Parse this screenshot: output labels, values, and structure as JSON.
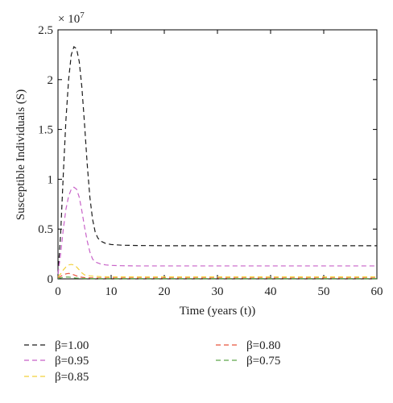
{
  "chart_data": {
    "type": "line",
    "xlabel": "Time (years (t))",
    "ylabel": "Susceptible Individuals (S)",
    "y_multiplier_label": "× 10",
    "y_multiplier_exponent": "7",
    "xlim": [
      0,
      60
    ],
    "ylim": [
      0,
      2.5
    ],
    "x_ticks": [
      "0",
      "10",
      "20",
      "30",
      "40",
      "50",
      "60"
    ],
    "y_ticks": [
      "0",
      "0.5",
      "1",
      "1.5",
      "2",
      "2.5"
    ],
    "grid": false,
    "legend_position": "bottom",
    "series": [
      {
        "name": "β=1.00",
        "color": "#1a1a1a",
        "x": [
          0,
          0.5,
          1,
          1.5,
          2,
          2.5,
          3,
          3.5,
          4,
          4.5,
          5,
          5.5,
          6,
          6.5,
          7,
          7.5,
          8,
          9,
          10,
          12,
          15,
          20,
          30,
          40,
          50,
          60
        ],
        "y": [
          0.05,
          0.45,
          1.05,
          1.6,
          2.0,
          2.25,
          2.33,
          2.31,
          2.18,
          1.92,
          1.55,
          1.15,
          0.82,
          0.6,
          0.47,
          0.41,
          0.38,
          0.355,
          0.345,
          0.338,
          0.335,
          0.333,
          0.333,
          0.333,
          0.333,
          0.333
        ]
      },
      {
        "name": "β=0.95",
        "color": "#c862c8",
        "x": [
          0,
          0.5,
          1,
          1.5,
          2,
          2.5,
          3,
          3.5,
          4,
          4.5,
          5,
          5.5,
          6,
          6.5,
          7,
          8,
          9,
          10,
          12,
          15,
          20,
          30,
          40,
          50,
          60
        ],
        "y": [
          0.05,
          0.25,
          0.5,
          0.7,
          0.83,
          0.9,
          0.92,
          0.9,
          0.82,
          0.68,
          0.52,
          0.38,
          0.27,
          0.2,
          0.17,
          0.15,
          0.14,
          0.135,
          0.132,
          0.13,
          0.13,
          0.13,
          0.13,
          0.13,
          0.13
        ]
      },
      {
        "name": "β=0.85",
        "color": "#f2d03a",
        "x": [
          0,
          0.5,
          1,
          1.5,
          2,
          2.5,
          3,
          3.5,
          4,
          4.5,
          5,
          6,
          7,
          8,
          10,
          15,
          20,
          30,
          40,
          50,
          60
        ],
        "y": [
          0.02,
          0.05,
          0.09,
          0.12,
          0.14,
          0.145,
          0.14,
          0.12,
          0.09,
          0.06,
          0.04,
          0.03,
          0.025,
          0.022,
          0.02,
          0.02,
          0.02,
          0.02,
          0.02,
          0.02,
          0.02
        ]
      },
      {
        "name": "β=0.80",
        "color": "#e8543c",
        "x": [
          0,
          0.5,
          1,
          1.5,
          2,
          2.5,
          3,
          3.5,
          4,
          5,
          6,
          8,
          10,
          20,
          30,
          40,
          50,
          60
        ],
        "y": [
          0.01,
          0.025,
          0.04,
          0.05,
          0.055,
          0.05,
          0.04,
          0.03,
          0.02,
          0.012,
          0.01,
          0.008,
          0.008,
          0.008,
          0.008,
          0.008,
          0.008,
          0.008
        ]
      },
      {
        "name": "β=0.75",
        "color": "#5fa84a",
        "x": [
          0,
          0.5,
          1,
          1.5,
          2,
          2.5,
          3,
          4,
          5,
          6,
          8,
          10,
          20,
          30,
          40,
          50,
          60
        ],
        "y": [
          0.005,
          0.01,
          0.015,
          0.018,
          0.018,
          0.015,
          0.01,
          0.006,
          0.004,
          0.003,
          0.003,
          0.003,
          0.003,
          0.003,
          0.003,
          0.003,
          0.003
        ]
      }
    ]
  }
}
